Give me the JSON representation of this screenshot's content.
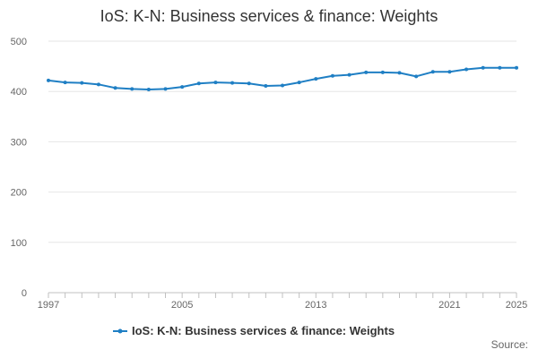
{
  "title": "IoS: K-N: Business services & finance: Weights",
  "source_label": "Source:",
  "chart_data": {
    "type": "line",
    "title": "IoS: K-N: Business services & finance: Weights",
    "xlabel": "",
    "ylabel": "",
    "x": [
      1997,
      1998,
      1999,
      2000,
      2001,
      2002,
      2003,
      2004,
      2005,
      2006,
      2007,
      2008,
      2009,
      2010,
      2011,
      2012,
      2013,
      2014,
      2015,
      2016,
      2017,
      2018,
      2019,
      2020,
      2021,
      2022,
      2023,
      2024,
      2025
    ],
    "x_tick_labels": [
      "1997",
      "2005",
      "2013",
      "2021",
      "2025"
    ],
    "xlim": [
      1997,
      2025
    ],
    "ylim": [
      0,
      500
    ],
    "y_ticks": [
      0,
      100,
      200,
      300,
      400,
      500
    ],
    "grid": true,
    "legend_position": "bottom",
    "series": [
      {
        "name": "IoS: K-N: Business services & finance: Weights",
        "color": "#1f7fc4",
        "values": [
          422,
          418,
          417,
          414,
          407,
          405,
          404,
          405,
          409,
          416,
          418,
          417,
          416,
          411,
          412,
          418,
          425,
          431,
          433,
          438,
          438,
          437,
          430,
          439,
          439,
          444,
          447,
          447,
          447
        ]
      }
    ]
  }
}
